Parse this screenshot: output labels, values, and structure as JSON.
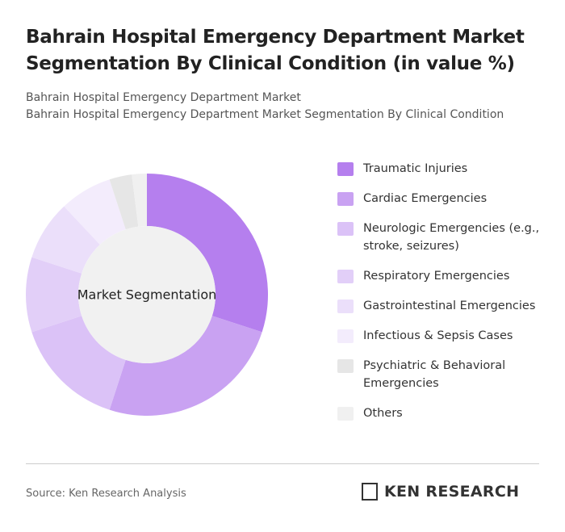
{
  "chart_data": {
    "type": "donut",
    "title": "Bahrain Hospital Emergency Department Market Segmentation By Clinical Condition (in value %)",
    "subtitle": [
      "Bahrain Hospital Emergency Department Market",
      "Bahrain Hospital Emergency Department Market Segmentation By Clinical Condition"
    ],
    "center_label": "Market Segmentation",
    "categories": [
      "Traumatic Injuries",
      "Cardiac Emergencies",
      "Neurologic Emergencies (e.g., stroke, seizures)",
      "Respiratory Emergencies",
      "Gastrointestinal Emergencies",
      "Infectious & Sepsis Cases",
      "Psychiatric & Behavioral Emergencies",
      "Others"
    ],
    "values": [
      30,
      25,
      15,
      10,
      8,
      7,
      3,
      2
    ],
    "colors": [
      "#b57fee",
      "#c9a2f2",
      "#dbc2f7",
      "#e2cff8",
      "#ebdffa",
      "#f3ecfc",
      "#e6e6e6",
      "#f0f0f0"
    ]
  },
  "source": "Source: Ken Research Analysis",
  "brand": "KEN RESEARCH"
}
